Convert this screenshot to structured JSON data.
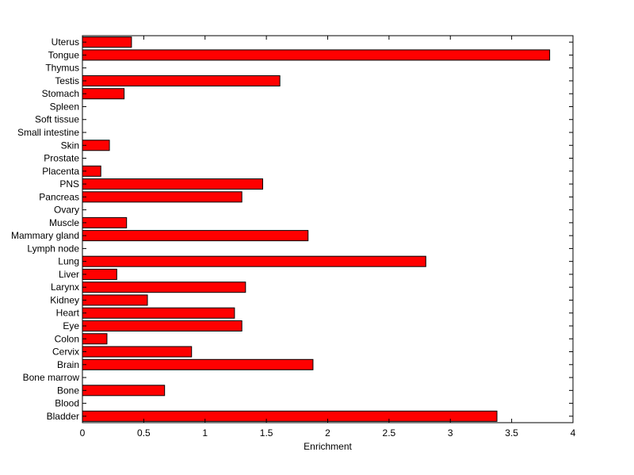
{
  "chart_data": {
    "type": "bar",
    "orientation": "horizontal",
    "xlabel": "Enrichment",
    "ylabel": "",
    "title": "",
    "xlim": [
      0,
      4
    ],
    "xticks": [
      0,
      0.5,
      1,
      1.5,
      2,
      2.5,
      3,
      3.5,
      4
    ],
    "xtick_labels": [
      "0",
      "0.5",
      "1",
      "1.5",
      "2",
      "2.5",
      "3",
      "3.5",
      "4"
    ],
    "grid": false,
    "legend": "none",
    "bar_color": "#ff0000",
    "bar_edge_color": "#000000",
    "categories": [
      "Bladder",
      "Blood",
      "Bone",
      "Bone marrow",
      "Brain",
      "Cervix",
      "Colon",
      "Eye",
      "Heart",
      "Kidney",
      "Larynx",
      "Liver",
      "Lung",
      "Lymph node",
      "Mammary gland",
      "Muscle",
      "Ovary",
      "Pancreas",
      "PNS",
      "Placenta",
      "Prostate",
      "Skin",
      "Small intestine",
      "Soft tissue",
      "Spleen",
      "Stomach",
      "Testis",
      "Thymus",
      "Tongue",
      "Uterus"
    ],
    "values": [
      3.38,
      0,
      0.67,
      0,
      1.88,
      0.89,
      0.2,
      1.3,
      1.24,
      0.53,
      1.33,
      0.28,
      2.8,
      0,
      1.84,
      0.36,
      0,
      1.3,
      1.47,
      0.15,
      0,
      0.22,
      0,
      0,
      0,
      0.34,
      1.61,
      0,
      3.81,
      0.4
    ]
  }
}
